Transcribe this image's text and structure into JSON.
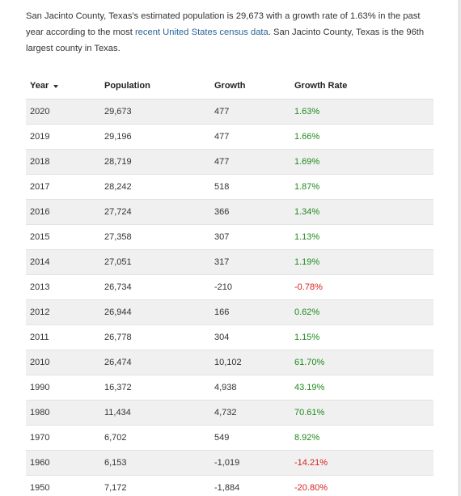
{
  "intro": {
    "text_before_link": "San Jacinto County, Texas's estimated population is 29,673 with a growth rate of 1.63% in the past year according to the most ",
    "link_text": "recent United States census data",
    "text_after_link": ". San Jacinto County, Texas is the 96th largest county in Texas."
  },
  "table": {
    "headers": {
      "year": "Year",
      "population": "Population",
      "growth": "Growth",
      "growth_rate": "Growth Rate"
    },
    "sort_icon": "caret-down-icon",
    "colors": {
      "positive": "#1e8a1e",
      "negative": "#d81f1f",
      "link": "#2a6496",
      "stripe": "#f0f0f0"
    },
    "rows": [
      {
        "year": "2020",
        "population": "29,673",
        "growth": "477",
        "rate": "1.63%",
        "sign": "pos"
      },
      {
        "year": "2019",
        "population": "29,196",
        "growth": "477",
        "rate": "1.66%",
        "sign": "pos"
      },
      {
        "year": "2018",
        "population": "28,719",
        "growth": "477",
        "rate": "1.69%",
        "sign": "pos"
      },
      {
        "year": "2017",
        "population": "28,242",
        "growth": "518",
        "rate": "1.87%",
        "sign": "pos"
      },
      {
        "year": "2016",
        "population": "27,724",
        "growth": "366",
        "rate": "1.34%",
        "sign": "pos"
      },
      {
        "year": "2015",
        "population": "27,358",
        "growth": "307",
        "rate": "1.13%",
        "sign": "pos"
      },
      {
        "year": "2014",
        "population": "27,051",
        "growth": "317",
        "rate": "1.19%",
        "sign": "pos"
      },
      {
        "year": "2013",
        "population": "26,734",
        "growth": "-210",
        "rate": "-0.78%",
        "sign": "neg"
      },
      {
        "year": "2012",
        "population": "26,944",
        "growth": "166",
        "rate": "0.62%",
        "sign": "pos"
      },
      {
        "year": "2011",
        "population": "26,778",
        "growth": "304",
        "rate": "1.15%",
        "sign": "pos"
      },
      {
        "year": "2010",
        "population": "26,474",
        "growth": "10,102",
        "rate": "61.70%",
        "sign": "pos"
      },
      {
        "year": "1990",
        "population": "16,372",
        "growth": "4,938",
        "rate": "43.19%",
        "sign": "pos"
      },
      {
        "year": "1980",
        "population": "11,434",
        "growth": "4,732",
        "rate": "70.61%",
        "sign": "pos"
      },
      {
        "year": "1970",
        "population": "6,702",
        "growth": "549",
        "rate": "8.92%",
        "sign": "pos"
      },
      {
        "year": "1960",
        "population": "6,153",
        "growth": "-1,019",
        "rate": "-14.21%",
        "sign": "neg"
      },
      {
        "year": "1950",
        "population": "7,172",
        "growth": "-1,884",
        "rate": "-20.80%",
        "sign": "neg"
      }
    ]
  }
}
